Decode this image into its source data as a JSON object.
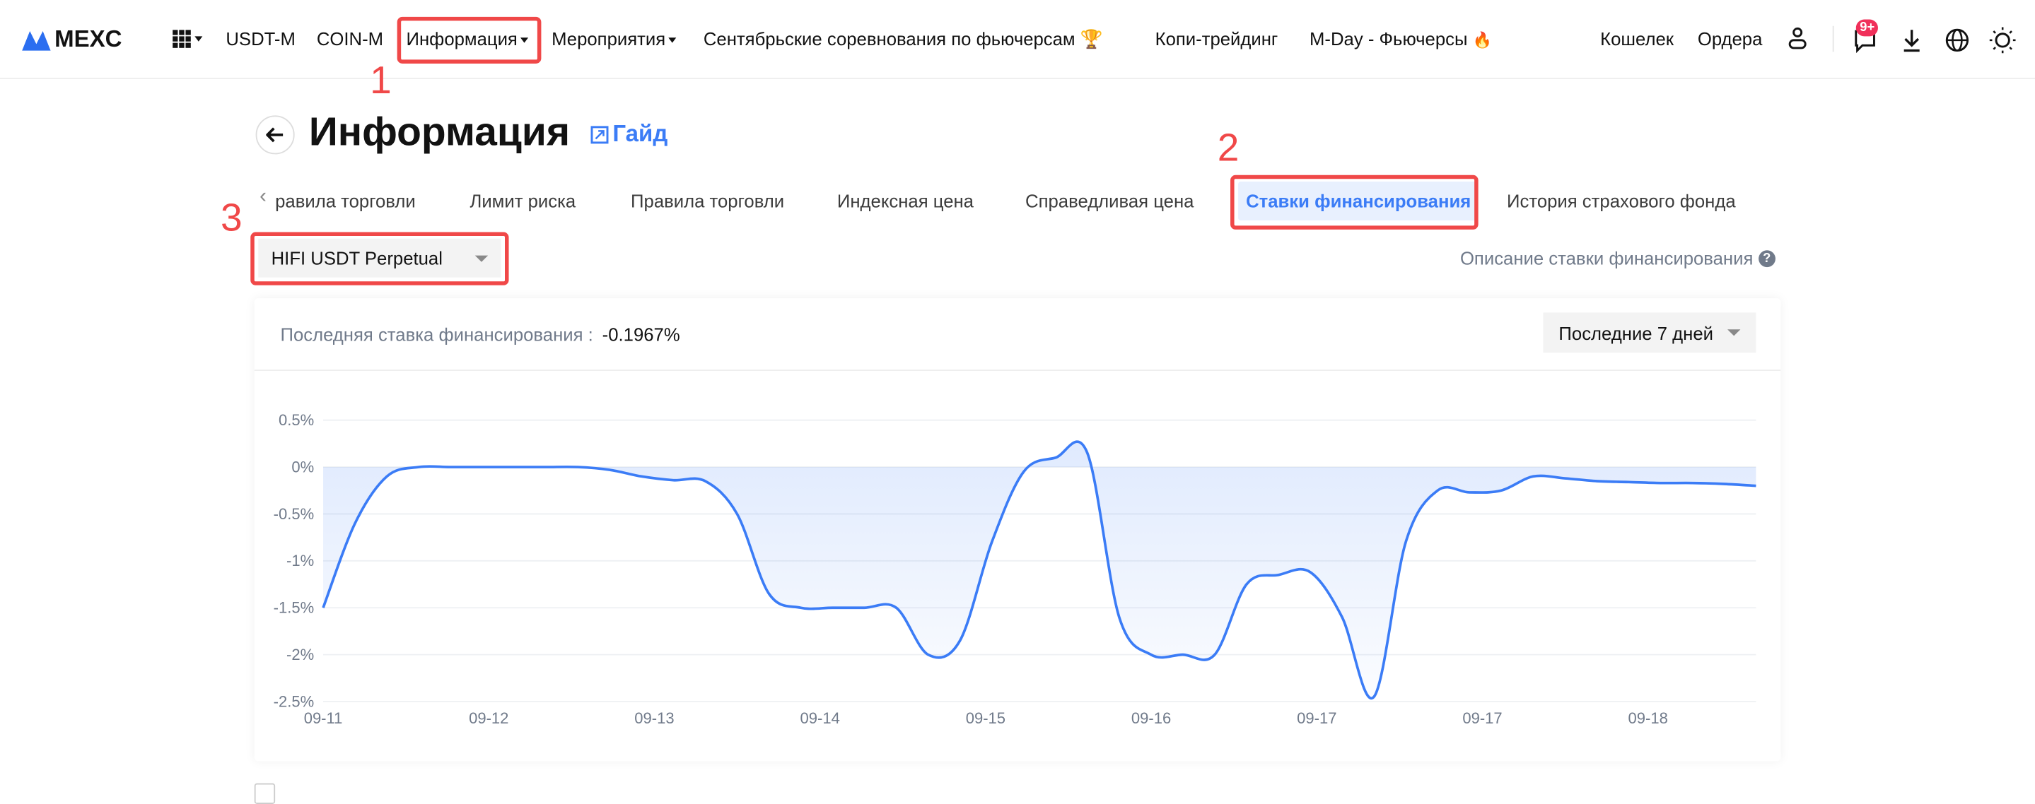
{
  "nav": {
    "logo": "MEXC",
    "items": [
      "USDT-M",
      "COIN-M",
      "Информация",
      "Мероприятия",
      "Сентябрьские соревнования по фьючерсам",
      "Копи-трейдинг",
      "M-Day - Фьючерсы"
    ],
    "right": [
      "Кошелек",
      "Ордера"
    ],
    "badge": "9+"
  },
  "page": {
    "title": "Информация",
    "guide_link": "Гайд",
    "tabs": [
      "равила торговли",
      "Лимит риска",
      "Правила торговли",
      "Индексная цена",
      "Справедливая цена",
      "Ставки финансирования",
      "История страхового фонда"
    ],
    "active_tab": "Ставки финансирования",
    "contract_select": "HIFI USDT Perpetual",
    "description_link": "Описание ставки финансирования",
    "last_rate_label": "Последняя ставка финансирования :",
    "last_rate_value": "-0.1967%",
    "period_select": "Последние 7 дней"
  },
  "annotations": [
    "1",
    "2",
    "3"
  ],
  "colors": {
    "accent": "#3b7cf6",
    "annotation": "#f04848",
    "badge": "#f0305a"
  },
  "chart_data": {
    "type": "area",
    "ylim": [
      -2.5,
      0.5
    ],
    "yticks": [
      "0.5%",
      "0%",
      "-0.5%",
      "-1%",
      "-1.5%",
      "-2%",
      "-2.5%"
    ],
    "ytick_values": [
      0.5,
      0,
      -0.5,
      -1,
      -1.5,
      -2,
      -2.5
    ],
    "xticks": [
      "09-11",
      "09-12",
      "09-13",
      "09-14",
      "09-15",
      "09-16",
      "09-17",
      "09-17",
      "09-18"
    ],
    "grid": true,
    "unit": "%",
    "values": [
      -1.5,
      -0.6,
      -0.1,
      0,
      0,
      0,
      0,
      0,
      0,
      -0.03,
      -0.1,
      -0.14,
      -0.15,
      -0.5,
      -1.35,
      -1.5,
      -1.5,
      -1.5,
      -1.5,
      -2.0,
      -1.85,
      -0.8,
      -0.05,
      0.1,
      0.15,
      -1.6,
      -2.0,
      -2.0,
      -2.0,
      -1.25,
      -1.15,
      -1.12,
      -1.6,
      -2.45,
      -0.8,
      -0.25,
      -0.27,
      -0.25,
      -0.1,
      -0.12,
      -0.15,
      -0.16,
      -0.17,
      -0.17,
      -0.18,
      -0.2
    ]
  }
}
